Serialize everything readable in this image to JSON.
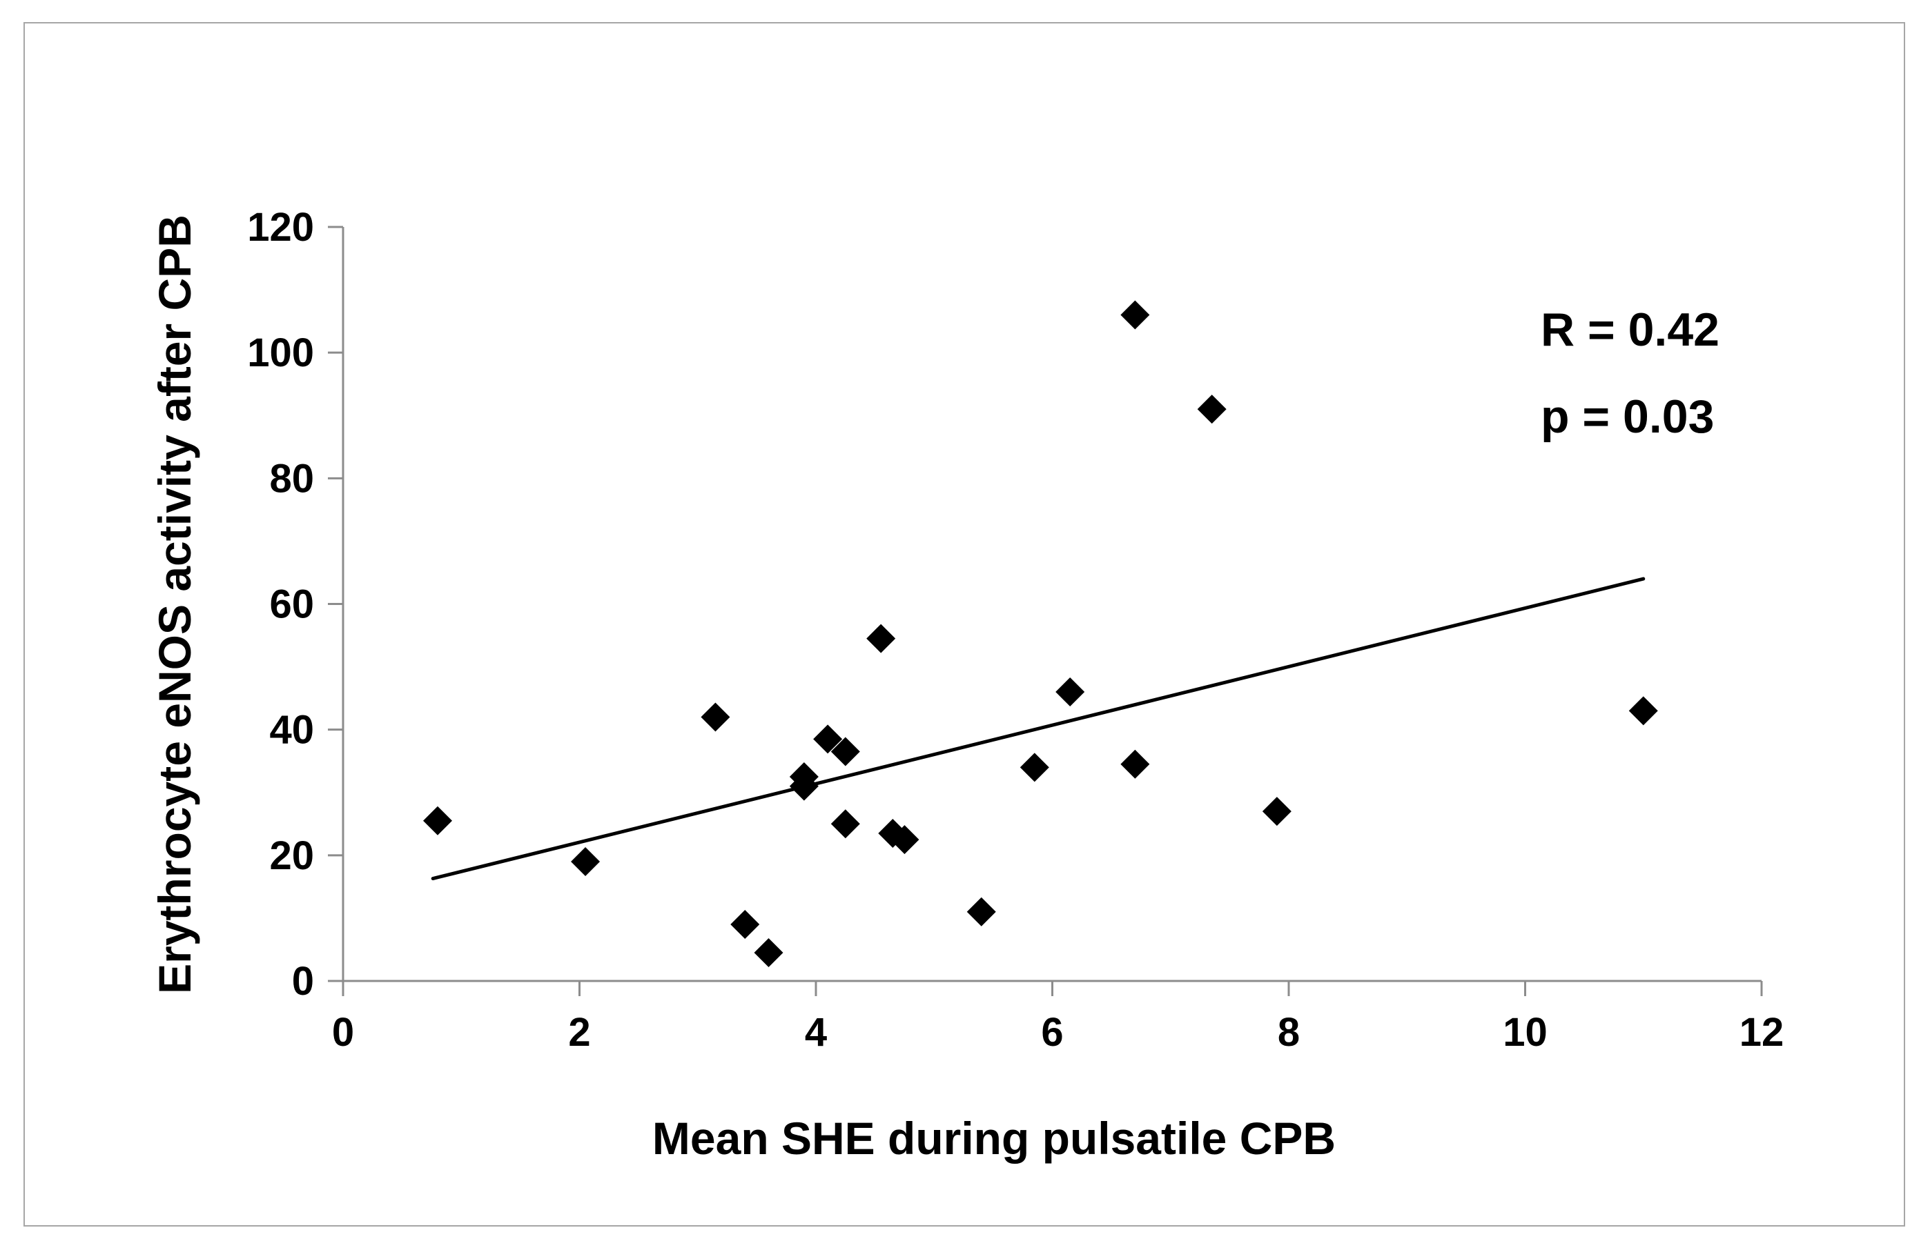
{
  "figure": {
    "background_color": "#ffffff",
    "border_color": "#a6a6a6",
    "axis_line_color": "#8c8c8c",
    "text_color": "#000000",
    "marker_color": "#000000",
    "trendline_color": "#000000"
  },
  "chart_data": {
    "type": "scatter",
    "title": "",
    "xlabel": "Mean SHE during pulsatile CPB",
    "ylabel": "Erythrocyte eNOS activity after CPB",
    "xlim": [
      0,
      12
    ],
    "ylim": [
      0,
      120
    ],
    "x_ticks": [
      0,
      2,
      4,
      6,
      8,
      10,
      12
    ],
    "y_ticks": [
      0,
      20,
      40,
      60,
      80,
      100,
      120
    ],
    "grid": false,
    "legend": "none",
    "marker": "diamond",
    "points": [
      [
        0.8,
        25.5
      ],
      [
        2.05,
        19
      ],
      [
        3.15,
        42
      ],
      [
        3.4,
        9
      ],
      [
        3.6,
        4.5
      ],
      [
        3.9,
        32.5
      ],
      [
        3.9,
        31
      ],
      [
        4.1,
        38.5
      ],
      [
        4.25,
        36.5
      ],
      [
        4.25,
        25
      ],
      [
        4.55,
        54.5
      ],
      [
        4.65,
        23.5
      ],
      [
        4.75,
        22.5
      ],
      [
        5.4,
        11
      ],
      [
        5.85,
        34
      ],
      [
        6.15,
        46
      ],
      [
        6.7,
        106
      ],
      [
        6.7,
        34.5
      ],
      [
        7.35,
        91
      ],
      [
        7.9,
        27
      ],
      [
        11,
        43
      ]
    ],
    "trendline": {
      "x1": 0.76,
      "y1": 16.3,
      "x2": 11.0,
      "y2": 64.0
    },
    "annotation": {
      "line1": "R = 0.42",
      "line2": "p = 0.03"
    }
  }
}
